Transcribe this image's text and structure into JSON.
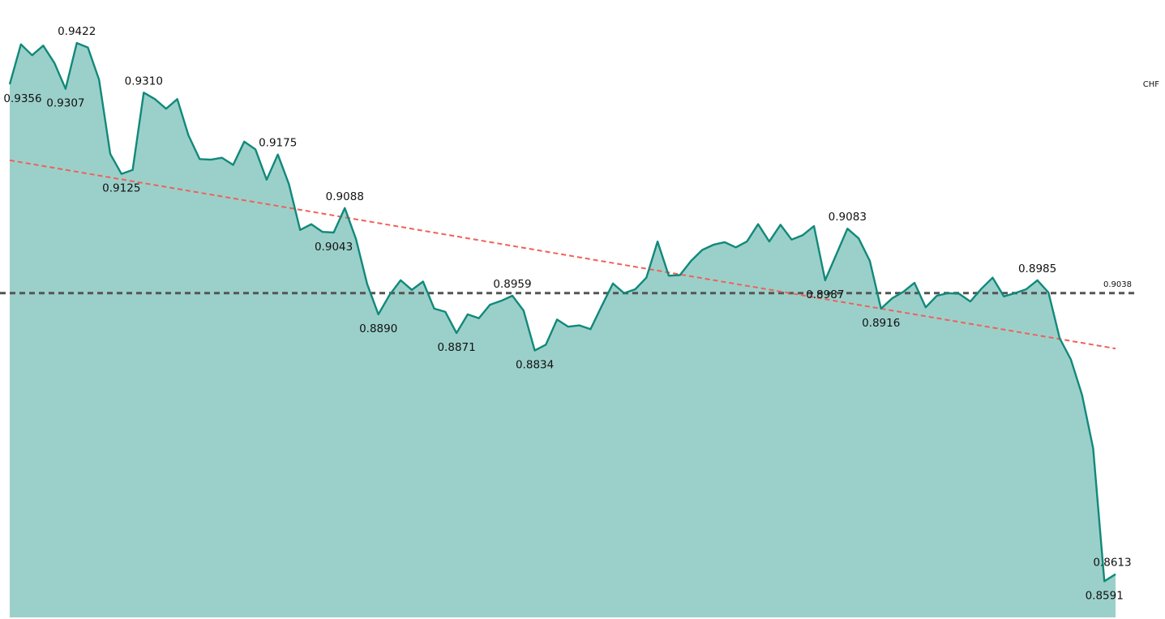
{
  "chart_data": {
    "type": "area",
    "title": "",
    "xlabel": "",
    "ylabel": "CHF",
    "ylim": [
      0.8535,
      0.9455
    ],
    "grid": false,
    "legend": "none",
    "colors": {
      "line": "#11897a",
      "fill": "#9bd0ca",
      "trend": "#f0605a",
      "average": "#555555"
    },
    "series": [
      {
        "values": [
          0.9362,
          0.9424,
          0.9407,
          0.9422,
          0.9395,
          0.9355,
          0.9426,
          0.9419,
          0.9369,
          0.9254,
          0.9223,
          0.9229,
          0.9349,
          0.9339,
          0.9324,
          0.9339,
          0.9283,
          0.9246,
          0.9245,
          0.9248,
          0.9237,
          0.9273,
          0.9261,
          0.9214,
          0.9253,
          0.9207,
          0.9136,
          0.9145,
          0.9133,
          0.9132,
          0.917,
          0.9122,
          0.9052,
          0.9005,
          0.9035,
          0.9058,
          0.9043,
          0.9056,
          0.9014,
          0.9009,
          0.8976,
          0.9005,
          0.8999,
          0.902,
          0.9026,
          0.9034,
          0.9011,
          0.8949,
          0.8958,
          0.8997,
          0.8986,
          0.8988,
          0.8982,
          0.9018,
          0.9053,
          0.9038,
          0.9044,
          0.9062,
          0.9118,
          0.9065,
          0.9066,
          0.9088,
          0.9105,
          0.9113,
          0.9117,
          0.9109,
          0.9118,
          0.9145,
          0.9118,
          0.9144,
          0.9121,
          0.9128,
          0.9142,
          0.9058,
          0.9098,
          0.9138,
          0.9123,
          0.9088,
          0.9014,
          0.903,
          0.904,
          0.9054,
          0.9016,
          0.9034,
          0.9038,
          0.9037,
          0.9025,
          0.9045,
          0.9062,
          0.9033,
          0.9038,
          0.9044,
          0.9058,
          0.9039,
          0.8968,
          0.8935,
          0.888,
          0.8797,
          0.8591,
          0.8602
        ]
      }
    ],
    "average": {
      "value": 0.9038,
      "label": "0.9038"
    },
    "trend": {
      "start": 0.9244,
      "end": 0.8952
    },
    "annotations": [
      {
        "index": 0,
        "text": "0.9356",
        "pos": "below"
      },
      {
        "index": 5,
        "text": "0.9307",
        "pos": "below"
      },
      {
        "index": 6,
        "text": "0.9422",
        "pos": "above"
      },
      {
        "index": 10,
        "text": "0.9125",
        "pos": "below"
      },
      {
        "index": 12,
        "text": "0.9310",
        "pos": "above"
      },
      {
        "index": 24,
        "text": "0.9175",
        "pos": "above"
      },
      {
        "index": 29,
        "text": "0.9043",
        "pos": "below"
      },
      {
        "index": 30,
        "text": "0.9088",
        "pos": "above"
      },
      {
        "index": 33,
        "text": "0.8890",
        "pos": "below"
      },
      {
        "index": 40,
        "text": "0.8871",
        "pos": "below"
      },
      {
        "index": 45,
        "text": "0.8959",
        "pos": "above"
      },
      {
        "index": 47,
        "text": "0.8834",
        "pos": "below"
      },
      {
        "index": 73,
        "text": "0.8987",
        "pos": "below"
      },
      {
        "index": 75,
        "text": "0.9083",
        "pos": "above"
      },
      {
        "index": 78,
        "text": "0.8916",
        "pos": "below"
      },
      {
        "index": 92,
        "text": "0.8985",
        "pos": "above"
      },
      {
        "index": 98,
        "text": "0.8591",
        "pos": "below"
      },
      {
        "index": 99,
        "text": "0.8613",
        "pos": "above"
      }
    ]
  }
}
